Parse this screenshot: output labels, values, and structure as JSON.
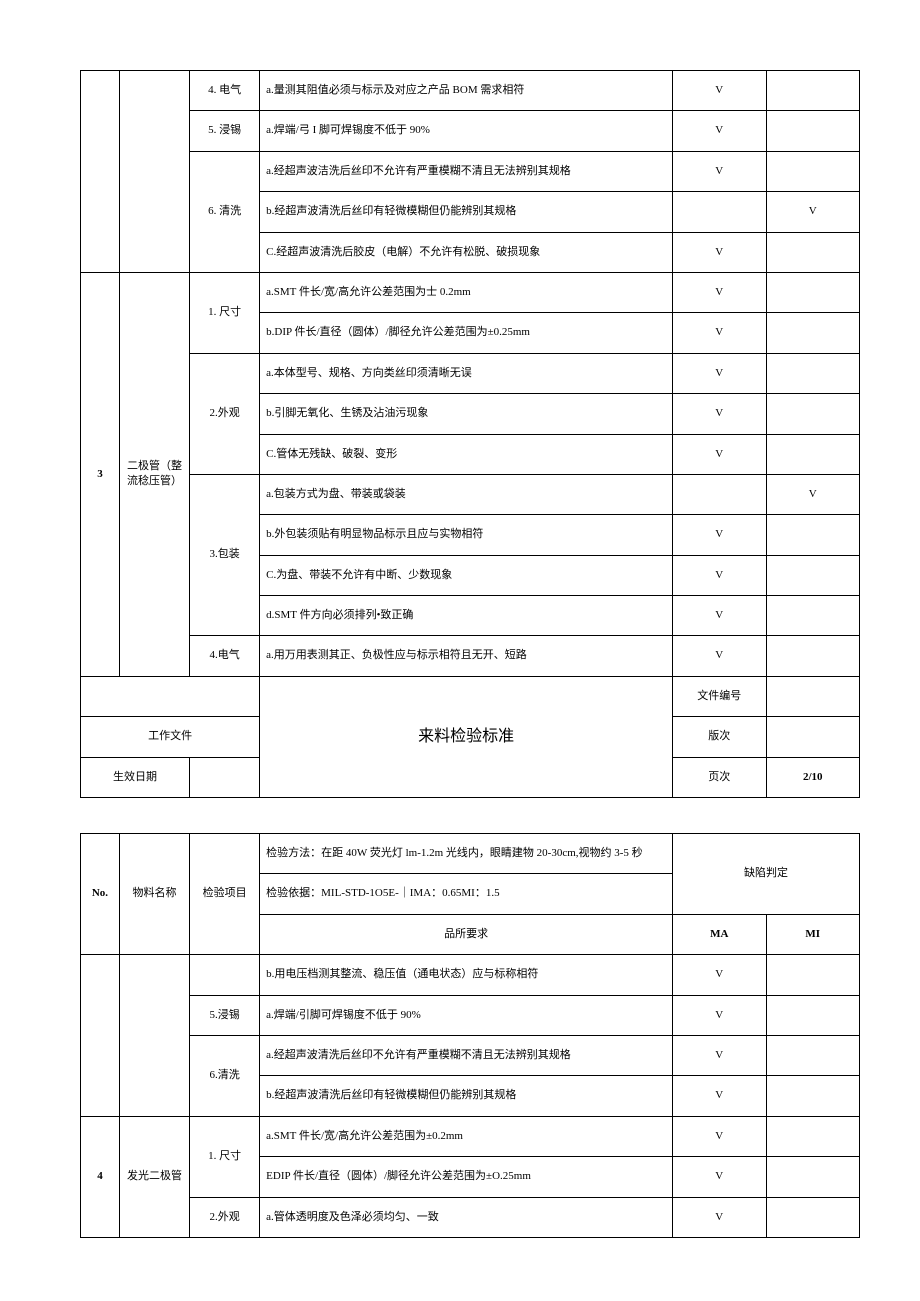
{
  "check": "V",
  "section1": {
    "rows": [
      {
        "no": "",
        "mat": "",
        "item": "4. 电气",
        "desc": "a.量测其阻值必须与标示及对应之产品 BOM 需求相符",
        "ma": "V",
        "mi": ""
      },
      {
        "item": "5. 浸锡",
        "desc": "a.焊端/弓 I 脚可焊锡度不低于 90%",
        "ma": "V",
        "mi": ""
      },
      {
        "item_span": "6. 清洗",
        "desc": "a.经超声波洁洗后丝印不允许有严重模糊不清且无法辨别其规格",
        "ma": "V",
        "mi": ""
      },
      {
        "desc": "b.经超声波清洗后丝印有轻微模糊但仍能辨别其规格",
        "ma": "",
        "mi": "V"
      },
      {
        "desc": "C.经超声波清洗后胶皮（电解）不允许有松脱、破损现象",
        "ma": "V",
        "mi": ""
      }
    ],
    "group3": {
      "no": "3",
      "mat": "二极管（整流稔压管）",
      "items": [
        {
          "item_span": "1. 尺寸",
          "rows": [
            {
              "desc": "a.SMT 件长/宽/高允许公差范围为士 0.2mm",
              "ma": "V",
              "mi": ""
            },
            {
              "desc": "b.DIP 件长/直径（圆体）/脚径允许公差范围为±0.25mm",
              "ma": "V",
              "mi": ""
            }
          ]
        },
        {
          "item_span": "2.外观",
          "rows": [
            {
              "desc": "a.本体型号、规格、方向类丝印须清晰无误",
              "ma": "V",
              "mi": ""
            },
            {
              "desc": "b.引脚无氧化、生锈及沾油污现象",
              "ma": "V",
              "mi": ""
            },
            {
              "desc": "C.管体无残缺、破裂、变形",
              "ma": "V",
              "mi": ""
            }
          ]
        },
        {
          "item_span": "3.包装",
          "rows": [
            {
              "desc": "a.包装方式为盘、带装或袋装",
              "ma": "",
              "mi": "V"
            },
            {
              "desc": "b.外包装须贴有明显物品标示且应与实物相符",
              "ma": "V",
              "mi": ""
            },
            {
              "desc": "C.为盘、带装不允许有中断、少数现象",
              "ma": "V",
              "mi": ""
            },
            {
              "desc": "d.SMT 件方向必须排列•致正确",
              "ma": "V",
              "mi": ""
            }
          ]
        },
        {
          "item_span": "4.电气",
          "rows": [
            {
              "desc": "a.用万用表测其正、负极性应与标示相符且无开、短路",
              "ma": "V",
              "mi": ""
            }
          ]
        }
      ]
    }
  },
  "header": {
    "docTitle": "来料检验标准",
    "workFile": "工作文件",
    "effectiveDate": "生效日期",
    "docNo": "文件编号",
    "version": "版次",
    "page": "页次",
    "pageVal": "2/10"
  },
  "tableHeader": {
    "no": "No.",
    "mat": "物料名称",
    "item": "检验项目",
    "method": "检验方法：在距 40W 荧光灯 lm-1.2m 光线内，眼睛建物 20-30cm,视物约 3-5 秒",
    "basis": "检验依据：MIL-STD-1O5E-｜IMA：0.65MI：1.5",
    "req": "品所要求",
    "defect": "缺陷判定",
    "ma": "MA",
    "mi": "MI"
  },
  "section2": {
    "preRows": [
      {
        "item": "",
        "desc": "b.用电压档测其整流、稳压值（通电状态）应与标称相符",
        "ma": "V",
        "mi": ""
      },
      {
        "item": "5.浸锡",
        "desc": "a.焊端/引脚可焊锡度不低于 90%",
        "ma": "V",
        "mi": ""
      },
      {
        "item_span": "6.清洗",
        "rows2": [
          {
            "desc": "a.经超声波清洗后丝印不允许有严重模糊不清且无法辨别其规格",
            "ma": "V",
            "mi": ""
          },
          {
            "desc": "b.经超声波清洗后丝印有轻微模糊但仍能辨别其规格",
            "ma": "V",
            "mi": ""
          }
        ]
      }
    ],
    "group4": {
      "no": "4",
      "mat": "发光二极管",
      "items": [
        {
          "item_span": "1. 尺寸",
          "rows": [
            {
              "desc": "a.SMT 件长/宽/高允许公差范围为±0.2mm",
              "ma": "V",
              "mi": ""
            },
            {
              "desc": "EDIP 件长/直径（圆体）/脚径允许公差范围为±O.25mm",
              "ma": "V",
              "mi": ""
            }
          ]
        },
        {
          "item_span": "2.外观",
          "rows": [
            {
              "desc": "a.管体透明度及色泽必须均匀、一致",
              "ma": "V",
              "mi": ""
            }
          ]
        }
      ]
    }
  }
}
